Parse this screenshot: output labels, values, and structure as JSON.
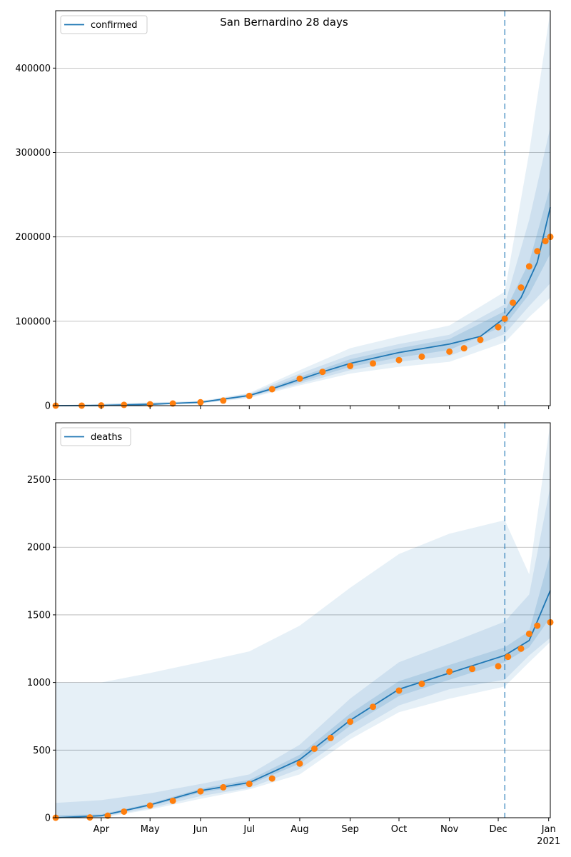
{
  "title": "San Bernardino 28 days",
  "colors": {
    "line": "#1f77b4",
    "observed": "#ff7f0e",
    "band": "#1f77b4",
    "grid": "#b0b0b0"
  },
  "x_axis": {
    "month_labels": [
      "Apr",
      "May",
      "Jun",
      "Jul",
      "Aug",
      "Sep",
      "Oct",
      "Nov",
      "Dec",
      "Jan"
    ],
    "year_label": "2021"
  },
  "chart_data": [
    {
      "type": "line",
      "legend": "confirmed",
      "legend_position": "top-left",
      "grid": true,
      "x_range": [
        "2020-03-04",
        "2021-01-02"
      ],
      "forecast_start": "2020-12-05",
      "ylim": [
        0,
        468000
      ],
      "y_ticks": [
        0,
        100000,
        200000,
        300000,
        400000
      ],
      "y_tick_labels": [
        "0",
        "100000",
        "200000",
        "300000",
        "400000"
      ],
      "model_median": [
        {
          "date": "2020-03-04",
          "value": 0
        },
        {
          "date": "2020-04-01",
          "value": 200
        },
        {
          "date": "2020-05-01",
          "value": 1500
        },
        {
          "date": "2020-06-01",
          "value": 4000
        },
        {
          "date": "2020-07-01",
          "value": 12000
        },
        {
          "date": "2020-07-15",
          "value": 20000
        },
        {
          "date": "2020-08-01",
          "value": 31000
        },
        {
          "date": "2020-08-15",
          "value": 40000
        },
        {
          "date": "2020-09-01",
          "value": 50000
        },
        {
          "date": "2020-10-01",
          "value": 63000
        },
        {
          "date": "2020-11-01",
          "value": 73000
        },
        {
          "date": "2020-11-20",
          "value": 82000
        },
        {
          "date": "2020-12-05",
          "value": 104000
        },
        {
          "date": "2020-12-15",
          "value": 128000
        },
        {
          "date": "2020-12-25",
          "value": 170000
        },
        {
          "date": "2021-01-02",
          "value": 235000
        }
      ],
      "bands": [
        [
          {
            "date": "2020-03-04",
            "low": 0,
            "high": 500
          },
          {
            "date": "2020-06-01",
            "low": 2500,
            "high": 5500
          },
          {
            "date": "2020-07-01",
            "low": 9000,
            "high": 15000
          },
          {
            "date": "2020-08-01",
            "low": 24000,
            "high": 42000
          },
          {
            "date": "2020-09-01",
            "low": 38000,
            "high": 68000
          },
          {
            "date": "2020-10-01",
            "low": 46000,
            "high": 82000
          },
          {
            "date": "2020-11-01",
            "low": 52000,
            "high": 95000
          },
          {
            "date": "2020-12-05",
            "low": 75000,
            "high": 135000
          },
          {
            "date": "2020-12-20",
            "low": 105000,
            "high": 300000
          },
          {
            "date": "2021-01-02",
            "low": 128000,
            "high": 468000
          }
        ],
        [
          {
            "date": "2020-03-04",
            "low": 0,
            "high": 350
          },
          {
            "date": "2020-06-01",
            "low": 3000,
            "high": 5000
          },
          {
            "date": "2020-07-01",
            "low": 10000,
            "high": 14000
          },
          {
            "date": "2020-08-01",
            "low": 26000,
            "high": 38000
          },
          {
            "date": "2020-09-01",
            "low": 42000,
            "high": 60000
          },
          {
            "date": "2020-10-01",
            "low": 52000,
            "high": 73000
          },
          {
            "date": "2020-11-01",
            "low": 59000,
            "high": 84000
          },
          {
            "date": "2020-12-05",
            "low": 85000,
            "high": 120000
          },
          {
            "date": "2020-12-20",
            "low": 118000,
            "high": 220000
          },
          {
            "date": "2021-01-02",
            "low": 145000,
            "high": 330000
          }
        ],
        [
          {
            "date": "2020-03-04",
            "low": 0,
            "high": 250
          },
          {
            "date": "2020-06-01",
            "low": 3400,
            "high": 4600
          },
          {
            "date": "2020-07-01",
            "low": 11000,
            "high": 13000
          },
          {
            "date": "2020-08-01",
            "low": 28000,
            "high": 34000
          },
          {
            "date": "2020-09-01",
            "low": 46000,
            "high": 55000
          },
          {
            "date": "2020-10-01",
            "low": 57000,
            "high": 68000
          },
          {
            "date": "2020-11-01",
            "low": 66000,
            "high": 79000
          },
          {
            "date": "2020-12-05",
            "low": 95000,
            "high": 112000
          },
          {
            "date": "2020-12-20",
            "low": 132000,
            "high": 170000
          },
          {
            "date": "2021-01-02",
            "low": 180000,
            "high": 260000
          }
        ]
      ],
      "observed": [
        {
          "date": "2020-03-04",
          "value": 0
        },
        {
          "date": "2020-03-20",
          "value": 50
        },
        {
          "date": "2020-04-01",
          "value": 300
        },
        {
          "date": "2020-04-15",
          "value": 900
        },
        {
          "date": "2020-05-01",
          "value": 1600
        },
        {
          "date": "2020-05-15",
          "value": 2500
        },
        {
          "date": "2020-06-01",
          "value": 4000
        },
        {
          "date": "2020-06-15",
          "value": 6000
        },
        {
          "date": "2020-07-01",
          "value": 11500
        },
        {
          "date": "2020-07-15",
          "value": 19500
        },
        {
          "date": "2020-08-01",
          "value": 32000
        },
        {
          "date": "2020-08-15",
          "value": 40000
        },
        {
          "date": "2020-09-01",
          "value": 47000
        },
        {
          "date": "2020-09-15",
          "value": 50000
        },
        {
          "date": "2020-10-01",
          "value": 54000
        },
        {
          "date": "2020-10-15",
          "value": 58000
        },
        {
          "date": "2020-11-01",
          "value": 64000
        },
        {
          "date": "2020-11-10",
          "value": 68000
        },
        {
          "date": "2020-11-20",
          "value": 78000
        },
        {
          "date": "2020-12-01",
          "value": 93000
        },
        {
          "date": "2020-12-05",
          "value": 103000
        },
        {
          "date": "2020-12-10",
          "value": 122000
        },
        {
          "date": "2020-12-15",
          "value": 140000
        },
        {
          "date": "2020-12-20",
          "value": 165000
        },
        {
          "date": "2020-12-25",
          "value": 183000
        },
        {
          "date": "2020-12-30",
          "value": 195000
        },
        {
          "date": "2021-01-02",
          "value": 200000
        }
      ]
    },
    {
      "type": "line",
      "legend": "deaths",
      "legend_position": "top-left",
      "grid": true,
      "x_range": [
        "2020-03-04",
        "2021-01-02"
      ],
      "forecast_start": "2020-12-05",
      "ylim": [
        0,
        2920
      ],
      "y_ticks": [
        0,
        500,
        1000,
        1500,
        2000,
        2500
      ],
      "y_tick_labels": [
        "0",
        "500",
        "1000",
        "1500",
        "2000",
        "2500"
      ],
      "model_median": [
        {
          "date": "2020-03-04",
          "value": 0
        },
        {
          "date": "2020-04-01",
          "value": 15
        },
        {
          "date": "2020-05-01",
          "value": 95
        },
        {
          "date": "2020-06-01",
          "value": 200
        },
        {
          "date": "2020-07-01",
          "value": 260
        },
        {
          "date": "2020-08-01",
          "value": 430
        },
        {
          "date": "2020-09-01",
          "value": 720
        },
        {
          "date": "2020-10-01",
          "value": 950
        },
        {
          "date": "2020-11-01",
          "value": 1070
        },
        {
          "date": "2020-12-05",
          "value": 1200
        },
        {
          "date": "2020-12-20",
          "value": 1310
        },
        {
          "date": "2021-01-02",
          "value": 1680
        }
      ],
      "bands": [
        [
          {
            "date": "2020-03-04",
            "low": 0,
            "high": 1000
          },
          {
            "date": "2020-04-01",
            "low": 0,
            "high": 1000
          },
          {
            "date": "2020-05-01",
            "low": 60,
            "high": 1070
          },
          {
            "date": "2020-06-01",
            "low": 140,
            "high": 1150
          },
          {
            "date": "2020-07-01",
            "low": 210,
            "high": 1230
          },
          {
            "date": "2020-08-01",
            "low": 320,
            "high": 1420
          },
          {
            "date": "2020-09-01",
            "low": 580,
            "high": 1700
          },
          {
            "date": "2020-10-01",
            "low": 780,
            "high": 1950
          },
          {
            "date": "2020-11-01",
            "low": 880,
            "high": 2100
          },
          {
            "date": "2020-12-05",
            "low": 970,
            "high": 2200
          },
          {
            "date": "2020-12-20",
            "low": 1150,
            "high": 1800
          },
          {
            "date": "2021-01-02",
            "low": 1300,
            "high": 2920
          }
        ],
        [
          {
            "date": "2020-03-04",
            "low": 0,
            "high": 110
          },
          {
            "date": "2020-04-01",
            "low": 5,
            "high": 130
          },
          {
            "date": "2020-05-01",
            "low": 70,
            "high": 180
          },
          {
            "date": "2020-06-01",
            "low": 160,
            "high": 250
          },
          {
            "date": "2020-07-01",
            "low": 220,
            "high": 320
          },
          {
            "date": "2020-08-01",
            "low": 360,
            "high": 540
          },
          {
            "date": "2020-09-01",
            "low": 620,
            "high": 880
          },
          {
            "date": "2020-10-01",
            "low": 830,
            "high": 1150
          },
          {
            "date": "2020-11-01",
            "low": 950,
            "high": 1290
          },
          {
            "date": "2020-12-05",
            "low": 1020,
            "high": 1450
          },
          {
            "date": "2020-12-20",
            "low": 1200,
            "high": 1650
          },
          {
            "date": "2021-01-02",
            "low": 1330,
            "high": 2450
          }
        ],
        [
          {
            "date": "2020-03-04",
            "low": 0,
            "high": 20
          },
          {
            "date": "2020-04-01",
            "low": 10,
            "high": 25
          },
          {
            "date": "2020-05-01",
            "low": 85,
            "high": 105
          },
          {
            "date": "2020-06-01",
            "low": 185,
            "high": 215
          },
          {
            "date": "2020-07-01",
            "low": 245,
            "high": 280
          },
          {
            "date": "2020-08-01",
            "low": 400,
            "high": 465
          },
          {
            "date": "2020-09-01",
            "low": 680,
            "high": 770
          },
          {
            "date": "2020-10-01",
            "low": 900,
            "high": 1010
          },
          {
            "date": "2020-11-01",
            "low": 1020,
            "high": 1130
          },
          {
            "date": "2020-12-05",
            "low": 1150,
            "high": 1260
          },
          {
            "date": "2020-12-20",
            "low": 1260,
            "high": 1380
          },
          {
            "date": "2021-01-02",
            "low": 1480,
            "high": 1950
          }
        ]
      ],
      "observed": [
        {
          "date": "2020-03-04",
          "value": 0
        },
        {
          "date": "2020-03-25",
          "value": 2
        },
        {
          "date": "2020-04-05",
          "value": 15
        },
        {
          "date": "2020-04-15",
          "value": 45
        },
        {
          "date": "2020-05-01",
          "value": 90
        },
        {
          "date": "2020-05-15",
          "value": 125
        },
        {
          "date": "2020-06-01",
          "value": 195
        },
        {
          "date": "2020-06-15",
          "value": 225
        },
        {
          "date": "2020-07-01",
          "value": 250
        },
        {
          "date": "2020-07-15",
          "value": 290
        },
        {
          "date": "2020-08-01",
          "value": 400
        },
        {
          "date": "2020-08-10",
          "value": 510
        },
        {
          "date": "2020-08-20",
          "value": 590
        },
        {
          "date": "2020-09-01",
          "value": 710
        },
        {
          "date": "2020-09-15",
          "value": 820
        },
        {
          "date": "2020-10-01",
          "value": 940
        },
        {
          "date": "2020-10-15",
          "value": 990
        },
        {
          "date": "2020-11-01",
          "value": 1080
        },
        {
          "date": "2020-11-15",
          "value": 1100
        },
        {
          "date": "2020-12-01",
          "value": 1120
        },
        {
          "date": "2020-12-07",
          "value": 1190
        },
        {
          "date": "2020-12-15",
          "value": 1250
        },
        {
          "date": "2020-12-20",
          "value": 1360
        },
        {
          "date": "2020-12-25",
          "value": 1420
        },
        {
          "date": "2021-01-02",
          "value": 1445
        }
      ]
    }
  ]
}
